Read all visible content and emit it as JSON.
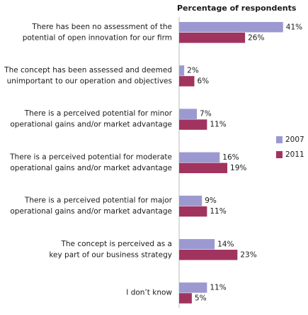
{
  "chart_data": {
    "type": "bar",
    "orientation": "horizontal",
    "title": "Percentage of respondents",
    "categories": [
      [
        "There has been no assessment of the",
        "potential of open innovation for our firm"
      ],
      [
        "The concept has been assessed and deemed",
        "unimportant to our operation and objectives"
      ],
      [
        "There is a perceived potential for minor",
        "operational gains and/or market advantage"
      ],
      [
        "There is a perceived potential for moderate",
        "operational gains and/or market advantage"
      ],
      [
        "There is a perceived potential for major",
        "operational gains and/or market advantage"
      ],
      [
        "The concept is perceived as a",
        "key part of our business strategy"
      ],
      [
        "I don’t know"
      ]
    ],
    "series": [
      {
        "name": "2007",
        "color": "#9c99d1",
        "values": [
          41,
          2,
          7,
          16,
          9,
          14,
          11
        ],
        "value_labels": [
          "41%",
          "2%",
          "7%",
          "16%",
          "9%",
          "14%",
          "11%"
        ]
      },
      {
        "name": "2011",
        "color": "#a1335f",
        "values": [
          26,
          6,
          11,
          19,
          11,
          23,
          5
        ],
        "value_labels": [
          "26%",
          "6%",
          "11%",
          "19%",
          "11%",
          "23%",
          "5%"
        ]
      }
    ],
    "legend": "right"
  }
}
